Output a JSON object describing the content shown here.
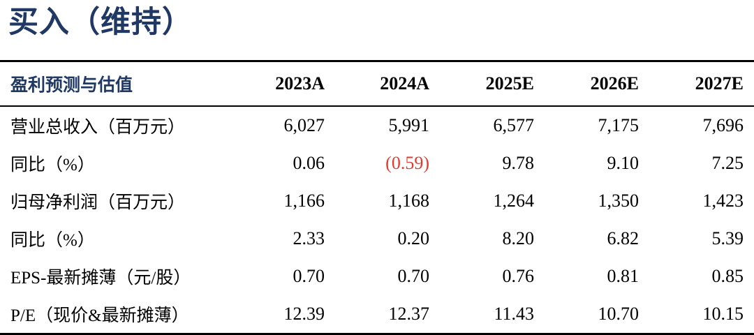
{
  "page": {
    "rating_title": "买入（维持）"
  },
  "colors": {
    "title_navy": "#1f3864",
    "table_header_navy": "#1f3864",
    "negative_value_red": "#e5392e",
    "rule_black": "#000000",
    "background": "#ffffff"
  },
  "table": {
    "header": [
      "盈利预测与估值",
      "2023A",
      "2024A",
      "2025E",
      "2026E",
      "2027E"
    ],
    "rows": [
      {
        "label": "营业总收入（百万元）",
        "values": [
          "6,027",
          "5,991",
          "6,577",
          "7,175",
          "7,696"
        ]
      },
      {
        "label": "同比（%）",
        "values": [
          "0.06",
          "(0.59)",
          "9.78",
          "9.10",
          "7.25"
        ]
      },
      {
        "label": "归母净利润（百万元）",
        "values": [
          "1,166",
          "1,168",
          "1,264",
          "1,350",
          "1,423"
        ]
      },
      {
        "label": "同比（%）",
        "values": [
          "2.33",
          "0.20",
          "8.20",
          "6.82",
          "5.39"
        ]
      },
      {
        "label": "EPS-最新摊薄（元/股）",
        "values": [
          "0.70",
          "0.70",
          "0.76",
          "0.81",
          "0.85"
        ]
      },
      {
        "label": "P/E（现价&最新摊薄）",
        "values": [
          "12.39",
          "12.37",
          "11.43",
          "10.70",
          "10.15"
        ]
      }
    ]
  }
}
